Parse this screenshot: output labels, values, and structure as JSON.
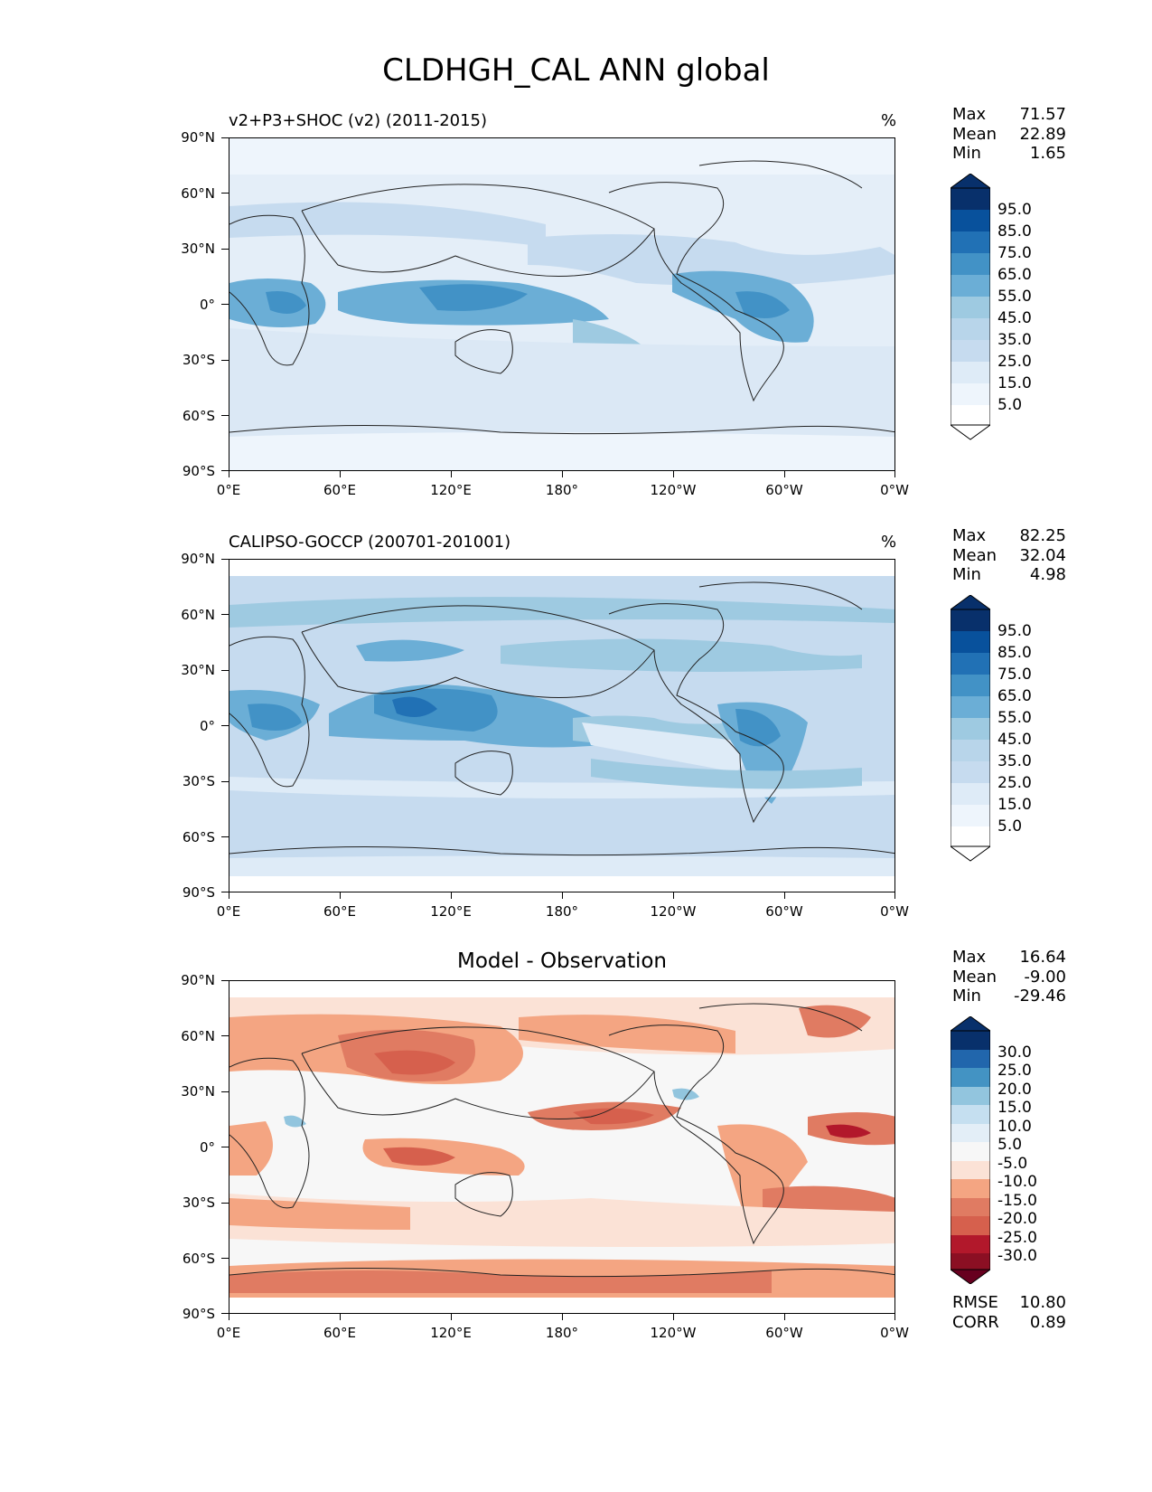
{
  "figure_title": "CLDHGH_CAL ANN global",
  "axis_labels": {
    "lat": [
      "90°N",
      "60°N",
      "30°N",
      "0°",
      "30°S",
      "60°S",
      "90°S"
    ],
    "lon": [
      "0°E",
      "60°E",
      "120°E",
      "180°",
      "120°W",
      "60°W",
      "0°W"
    ]
  },
  "panels": [
    {
      "title": "v2+P3+SHOC (v2) (2011-2015)",
      "units": "%",
      "stats": [
        {
          "label": "Max",
          "value": "71.57"
        },
        {
          "label": "Mean",
          "value": "22.89"
        },
        {
          "label": "Min",
          "value": "1.65"
        }
      ],
      "colorbar_labels": [
        "95.0",
        "85.0",
        "75.0",
        "65.0",
        "55.0",
        "45.0",
        "35.0",
        "25.0",
        "15.0",
        "5.0"
      ],
      "colorbar_colors": [
        "#08306b",
        "#08519c",
        "#2171b5",
        "#4292c6",
        "#6baed6",
        "#9ecae1",
        "#b8d5ea",
        "#c6dbef",
        "#deebf7",
        "#eef5fc",
        "#ffffff"
      ]
    },
    {
      "title": "CALIPSO-GOCCP (200701-201001)",
      "units": "%",
      "stats": [
        {
          "label": "Max",
          "value": "82.25"
        },
        {
          "label": "Mean",
          "value": "32.04"
        },
        {
          "label": "Min",
          "value": "4.98"
        }
      ],
      "colorbar_labels": [
        "95.0",
        "85.0",
        "75.0",
        "65.0",
        "55.0",
        "45.0",
        "35.0",
        "25.0",
        "15.0",
        "5.0"
      ],
      "colorbar_colors": [
        "#08306b",
        "#08519c",
        "#2171b5",
        "#4292c6",
        "#6baed6",
        "#9ecae1",
        "#b8d5ea",
        "#c6dbef",
        "#deebf7",
        "#eef5fc",
        "#ffffff"
      ]
    },
    {
      "title": "Model - Observation",
      "units": "",
      "stats": [
        {
          "label": "Max",
          "value": "16.64"
        },
        {
          "label": "Mean",
          "value": "-9.00"
        },
        {
          "label": "Min",
          "value": "-29.46"
        }
      ],
      "colorbar_labels": [
        "30.0",
        "25.0",
        "20.0",
        "15.0",
        "10.0",
        "5.0",
        "-5.0",
        "-10.0",
        "-15.0",
        "-20.0",
        "-25.0",
        "-30.0"
      ],
      "colorbar_colors": [
        "#08306b",
        "#2166ac",
        "#4393c3",
        "#92c5de",
        "#c5dff0",
        "#e3eef7",
        "#f7f7f7",
        "#fbe2d6",
        "#f4a582",
        "#e07b62",
        "#d6604d",
        "#b2182b",
        "#8b0f23",
        "#67001f"
      ],
      "metrics": [
        {
          "label": "RMSE",
          "value": "10.80"
        },
        {
          "label": "CORR",
          "value": "0.89"
        }
      ]
    }
  ]
}
